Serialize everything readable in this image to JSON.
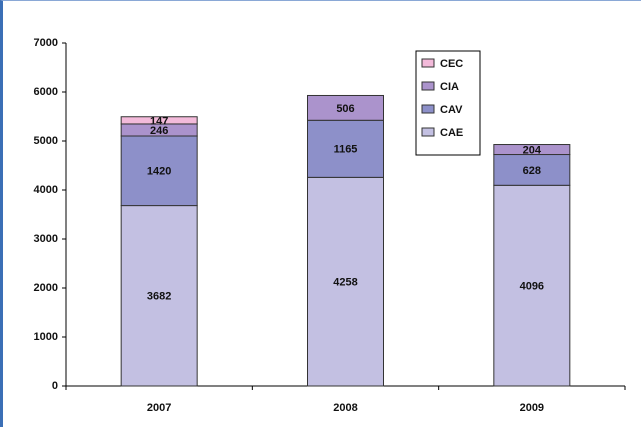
{
  "chart_data": {
    "type": "stacked_bar",
    "categories": [
      "2007",
      "2008",
      "2009"
    ],
    "series": [
      {
        "name": "CAE",
        "color": "#c3c0e2",
        "values": [
          3682,
          4258,
          4096
        ]
      },
      {
        "name": "CAV",
        "color": "#8d90c9",
        "values": [
          1420,
          1165,
          628
        ]
      },
      {
        "name": "CIA",
        "color": "#ab93cc",
        "values": [
          246,
          506,
          204
        ]
      },
      {
        "name": "CEC",
        "color": "#f3bada",
        "values": [
          147,
          null,
          null
        ]
      }
    ],
    "ylim": [
      0,
      7000
    ],
    "yticks": [
      0,
      1000,
      2000,
      3000,
      4000,
      5000,
      6000,
      7000
    ],
    "grid": false,
    "legend": "top-right"
  }
}
